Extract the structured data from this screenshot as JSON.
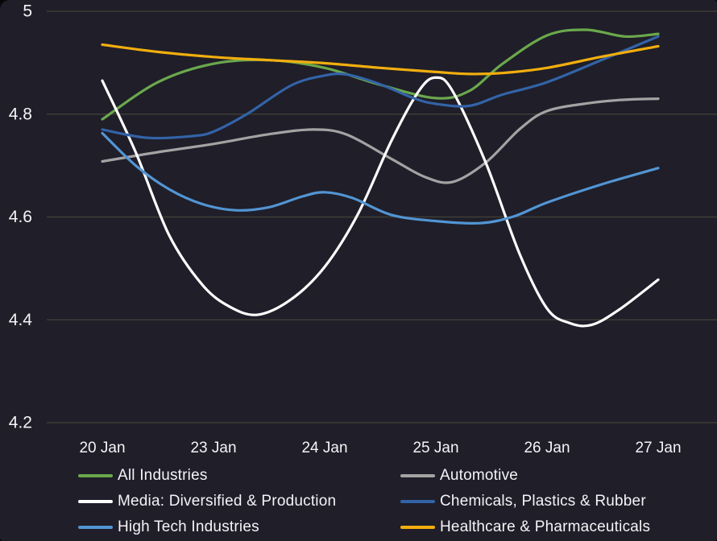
{
  "panel": {
    "background": "#1F1E29",
    "grid_color": "#3E3D35",
    "text_color": "#F5F3F7"
  },
  "chart_data": {
    "type": "line",
    "title": "",
    "xlabel": "",
    "ylabel": "",
    "grid": true,
    "legend_position": "bottom",
    "ylim": [
      4.2,
      5
    ],
    "x_tick_labels": [
      "20 Jan",
      "23 Jan",
      "24 Jan",
      "25 Jan",
      "26 Jan",
      "27 Jan"
    ],
    "x_tick_values": [
      0,
      1,
      2,
      3,
      4,
      5
    ],
    "y_tick_labels": [
      "5",
      "4.8",
      "4.6",
      "4.4",
      "4.2"
    ],
    "y_tick_values": [
      5,
      4.8,
      4.6,
      4.4,
      4.2
    ],
    "series": [
      {
        "name": "All Industries",
        "color": "#6BA84C",
        "points": [
          [
            0,
            4.79
          ],
          [
            0.5,
            4.862
          ],
          [
            1,
            4.898
          ],
          [
            1.5,
            4.905
          ],
          [
            2,
            4.89
          ],
          [
            2.5,
            4.857
          ],
          [
            3,
            4.831
          ],
          [
            3.3,
            4.845
          ],
          [
            3.6,
            4.898
          ],
          [
            4,
            4.953
          ],
          [
            4.35,
            4.964
          ],
          [
            4.7,
            4.951
          ],
          [
            5,
            4.956
          ]
        ]
      },
      {
        "name": "Automotive",
        "color": "#A3A3A3",
        "points": [
          [
            0,
            4.708
          ],
          [
            0.5,
            4.726
          ],
          [
            1,
            4.742
          ],
          [
            1.5,
            4.761
          ],
          [
            1.9,
            4.77
          ],
          [
            2.2,
            4.76
          ],
          [
            2.6,
            4.713
          ],
          [
            2.9,
            4.678
          ],
          [
            3.15,
            4.668
          ],
          [
            3.45,
            4.706
          ],
          [
            3.75,
            4.77
          ],
          [
            4,
            4.806
          ],
          [
            4.4,
            4.822
          ],
          [
            4.7,
            4.828
          ],
          [
            5,
            4.83
          ]
        ]
      },
      {
        "name": "Media: Diversified & Production",
        "color": "#FFFFFF",
        "points": [
          [
            0,
            4.865
          ],
          [
            0.3,
            4.726
          ],
          [
            0.6,
            4.565
          ],
          [
            0.9,
            4.468
          ],
          [
            1.15,
            4.425
          ],
          [
            1.4,
            4.41
          ],
          [
            1.7,
            4.44
          ],
          [
            2,
            4.503
          ],
          [
            2.3,
            4.606
          ],
          [
            2.6,
            4.748
          ],
          [
            2.85,
            4.846
          ],
          [
            3,
            4.871
          ],
          [
            3.15,
            4.845
          ],
          [
            3.45,
            4.705
          ],
          [
            3.75,
            4.53
          ],
          [
            4,
            4.422
          ],
          [
            4.2,
            4.394
          ],
          [
            4.4,
            4.39
          ],
          [
            4.65,
            4.42
          ],
          [
            5,
            4.478
          ]
        ]
      },
      {
        "name": "Chemicals, Plastics & Rubber",
        "color": "#3363A7",
        "points": [
          [
            0,
            4.77
          ],
          [
            0.4,
            4.754
          ],
          [
            0.8,
            4.757
          ],
          [
            1,
            4.766
          ],
          [
            1.3,
            4.8
          ],
          [
            1.7,
            4.856
          ],
          [
            2,
            4.875
          ],
          [
            2.2,
            4.877
          ],
          [
            2.5,
            4.858
          ],
          [
            2.8,
            4.831
          ],
          [
            3,
            4.82
          ],
          [
            3.3,
            4.816
          ],
          [
            3.6,
            4.838
          ],
          [
            4,
            4.862
          ],
          [
            4.5,
            4.906
          ],
          [
            5,
            4.951
          ]
        ]
      },
      {
        "name": "High Tech Industries",
        "color": "#5295D3",
        "points": [
          [
            0,
            4.763
          ],
          [
            0.3,
            4.7
          ],
          [
            0.6,
            4.654
          ],
          [
            0.9,
            4.625
          ],
          [
            1.2,
            4.613
          ],
          [
            1.5,
            4.619
          ],
          [
            1.8,
            4.64
          ],
          [
            2,
            4.648
          ],
          [
            2.25,
            4.637
          ],
          [
            2.6,
            4.604
          ],
          [
            3,
            4.592
          ],
          [
            3.4,
            4.588
          ],
          [
            3.7,
            4.601
          ],
          [
            4,
            4.628
          ],
          [
            4.5,
            4.664
          ],
          [
            5,
            4.695
          ]
        ]
      },
      {
        "name": "Healthcare & Pharmaceuticals",
        "color": "#F2AE0E",
        "points": [
          [
            0,
            4.935
          ],
          [
            0.5,
            4.921
          ],
          [
            1,
            4.911
          ],
          [
            1.5,
            4.905
          ],
          [
            2,
            4.899
          ],
          [
            2.5,
            4.89
          ],
          [
            3,
            4.882
          ],
          [
            3.3,
            4.878
          ],
          [
            3.6,
            4.88
          ],
          [
            4,
            4.89
          ],
          [
            4.5,
            4.912
          ],
          [
            5,
            4.932
          ]
        ]
      }
    ],
    "legend_columns": [
      [
        0,
        2,
        4
      ],
      [
        1,
        3,
        5
      ]
    ]
  }
}
